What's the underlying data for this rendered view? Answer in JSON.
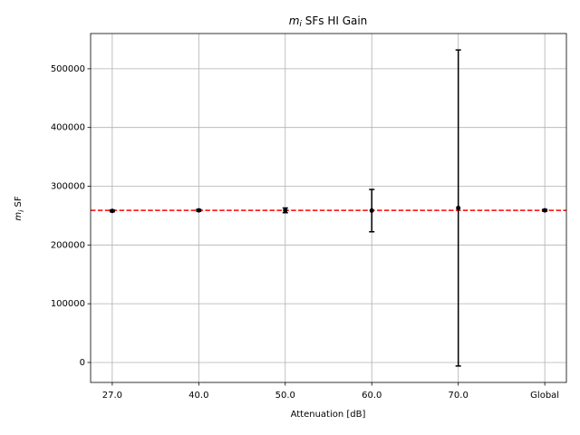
{
  "chart_data": {
    "type": "errorbar",
    "title": {
      "symbol": "m",
      "subscript": "i",
      "text": " SFs HI Gain"
    },
    "x_label": "Attenuation [dB]",
    "y_label": {
      "symbol": "m",
      "subscript": "i",
      "text": " SF"
    },
    "categories": [
      "27.0",
      "40.0",
      "50.0",
      "60.0",
      "70.0",
      "Global"
    ],
    "values": [
      258000,
      259000,
      259000,
      258500,
      263000,
      259000
    ],
    "errors": [
      1500,
      1500,
      4000,
      36000,
      269000,
      1500
    ],
    "color": "#000000",
    "reference_line": {
      "value": 259000,
      "color": "#ff0000",
      "style": "dashed"
    },
    "xlim": [
      -0.25,
      5.25
    ],
    "ylim": [
      -34000,
      560000
    ],
    "yticks": [
      0,
      100000,
      200000,
      300000,
      400000,
      500000
    ],
    "grid": true
  }
}
